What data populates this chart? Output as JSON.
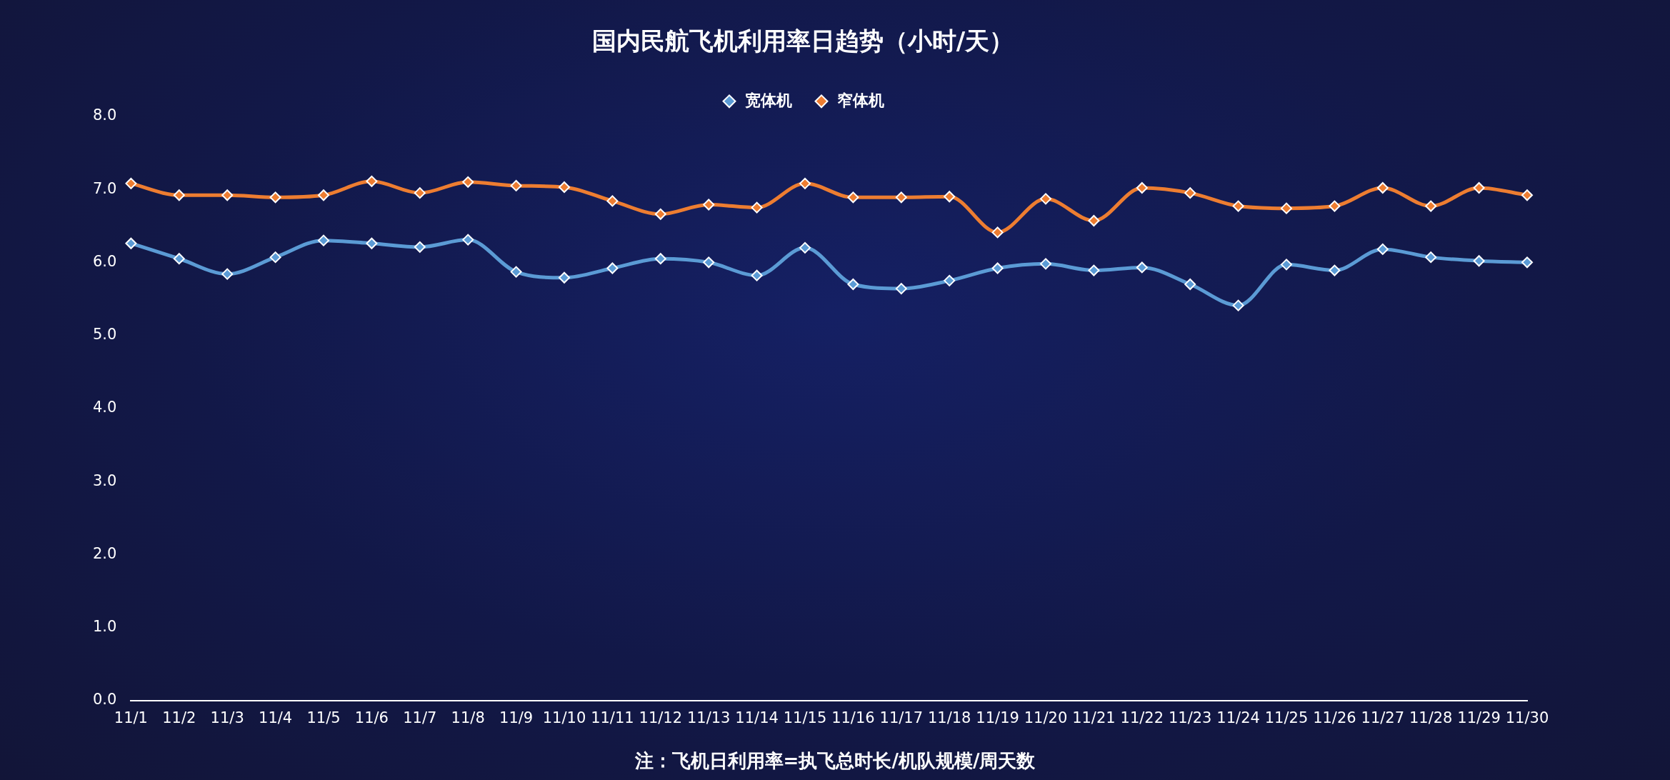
{
  "chart_data": {
    "type": "line",
    "title": "国内民航飞机利用率日趋势（小时/天）",
    "categories": [
      "11/1",
      "11/2",
      "11/3",
      "11/4",
      "11/5",
      "11/6",
      "11/7",
      "11/8",
      "11/9",
      "11/10",
      "11/11",
      "11/12",
      "11/13",
      "11/14",
      "11/15",
      "11/16",
      "11/17",
      "11/18",
      "11/19",
      "11/20",
      "11/21",
      "11/22",
      "11/23",
      "11/24",
      "11/25",
      "11/26",
      "11/27",
      "11/28",
      "11/29",
      "11/30"
    ],
    "series": [
      {
        "name": "宽体机",
        "color": "#5b9bd5",
        "values": [
          6.26,
          6.05,
          5.84,
          6.07,
          6.3,
          6.26,
          6.21,
          6.31,
          5.87,
          5.79,
          5.92,
          6.05,
          6.0,
          5.82,
          6.2,
          5.7,
          5.64,
          5.75,
          5.92,
          5.98,
          5.89,
          5.93,
          5.7,
          5.41,
          5.97,
          5.89,
          6.18,
          6.07,
          6.02,
          6.0
        ]
      },
      {
        "name": "窄体机",
        "color": "#ed7d31",
        "values": [
          7.08,
          6.92,
          6.92,
          6.89,
          6.92,
          7.11,
          6.95,
          7.1,
          7.05,
          7.03,
          6.84,
          6.66,
          6.79,
          6.75,
          7.08,
          6.89,
          6.89,
          6.9,
          6.41,
          6.87,
          6.57,
          7.02,
          6.95,
          6.77,
          6.74,
          6.77,
          7.02,
          6.77,
          7.02,
          6.92
        ]
      }
    ],
    "ylim": [
      0,
      8
    ],
    "yticks": [
      {
        "value": 0,
        "label": "0.0"
      },
      {
        "value": 1,
        "label": "1.0"
      },
      {
        "value": 2,
        "label": "2.0"
      },
      {
        "value": 3,
        "label": "3.0"
      },
      {
        "value": 4,
        "label": "4.0"
      },
      {
        "value": 5,
        "label": "5.0"
      },
      {
        "value": 6,
        "label": "6.0"
      },
      {
        "value": 7,
        "label": "7.0"
      },
      {
        "value": 8,
        "label": "8.0"
      }
    ],
    "grid": false,
    "legend": "top",
    "marker": "diamond",
    "line_style": "solid",
    "annotations": [
      "注：飞机日利用率=执飞总时长/机队规模/周天数"
    ]
  }
}
